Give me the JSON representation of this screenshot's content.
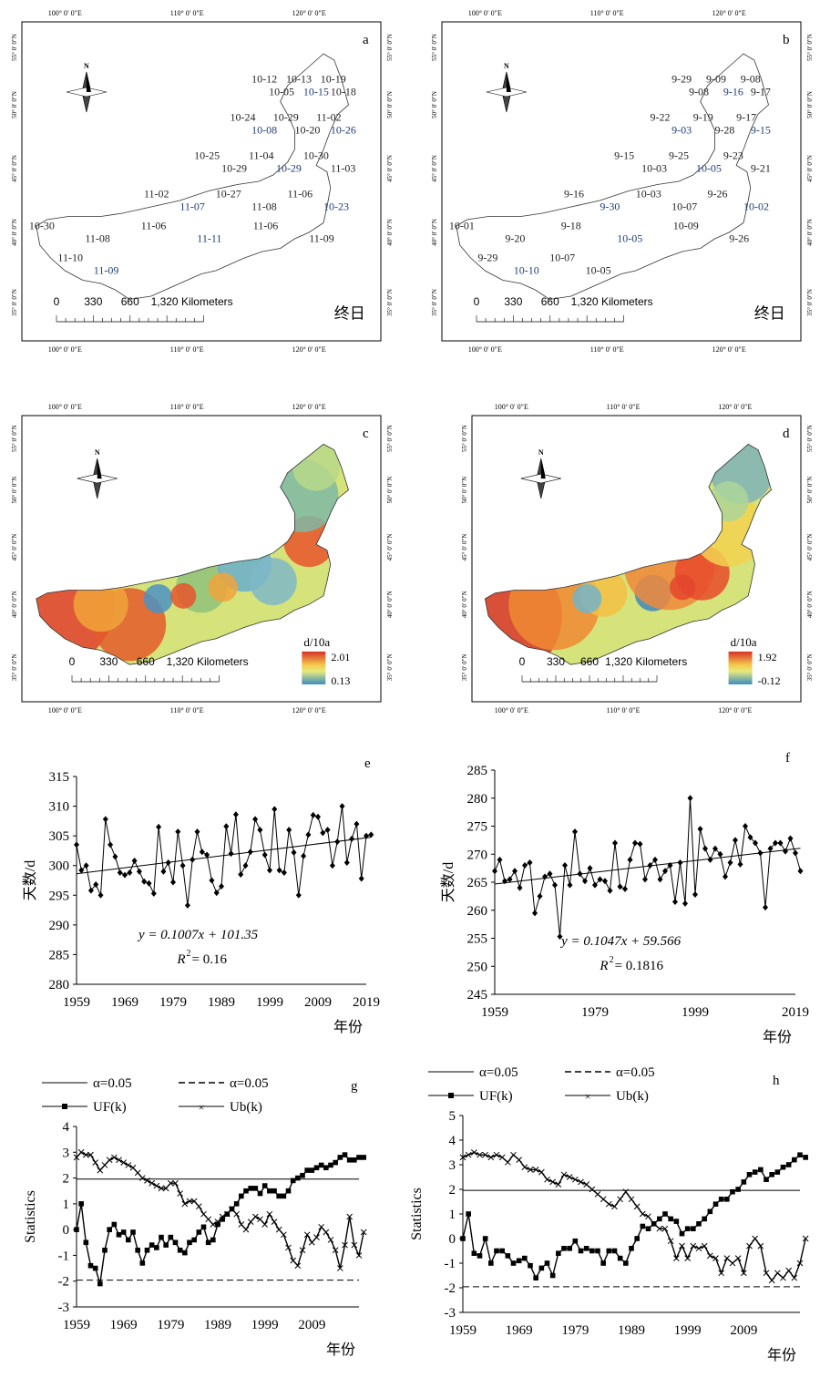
{
  "chart_data": [
    {
      "panel": "a",
      "type": "map",
      "corner_label": "终日",
      "north": "N",
      "scale_labels": [
        "0",
        "330",
        "660",
        "1,320 Kilometers"
      ],
      "lon_labels": [
        "100° 0′ 0″E",
        "110° 0′ 0″E",
        "120° 0′ 0″E"
      ],
      "lat_labels": [
        "55° 0′ 0″N",
        "50° 0′ 0″N",
        "45° 0′ 0″N",
        "40° 0′ 0″N",
        "35° 0′ 0″N"
      ],
      "station_dates": [
        "10-12",
        "10-05",
        "10-13",
        "10-15",
        "10-19",
        "10-18",
        "10-24",
        "10-08",
        "10-29",
        "10-20",
        "11-02",
        "10-26",
        "10-25",
        "10-29",
        "11-04",
        "10-29",
        "10-30",
        "11-03",
        "11-02",
        "11-07",
        "10-27",
        "11-08",
        "11-06",
        "10-23",
        "10-30",
        "11-08",
        "11-06",
        "11-11",
        "11-06",
        "11-09",
        "11-10",
        "11-09"
      ]
    },
    {
      "panel": "b",
      "type": "map",
      "corner_label": "终日",
      "north": "N",
      "scale_labels": [
        "0",
        "330",
        "660",
        "1,320 Kilometers"
      ],
      "lon_labels": [
        "100° 0′ 0″E",
        "110° 0′ 0″E",
        "120° 0′ 0″E"
      ],
      "lat_labels": [
        "55° 0′ 0″N",
        "50° 0′ 0″N",
        "45° 0′ 0″N",
        "40° 0′ 0″N",
        "35° 0′ 0″N"
      ],
      "station_dates": [
        "9-29",
        "9-08",
        "9-09",
        "9-16",
        "9-08",
        "9-17",
        "9-22",
        "9-03",
        "9-19",
        "9-28",
        "9-17",
        "9-15",
        "9-15",
        "10-03",
        "9-25",
        "10-05",
        "9-23",
        "9-21",
        "9-16",
        "9-30",
        "10-03",
        "10-07",
        "9-26",
        "10-02",
        "10-01",
        "9-20",
        "9-18",
        "10-05",
        "10-09",
        "9-26",
        "9-29",
        "10-10",
        "10-07",
        "10-05"
      ]
    },
    {
      "panel": "c",
      "type": "heatmap",
      "legend_title": "d/10a",
      "legend_max": "2.01",
      "legend_min": "0.13",
      "north": "N",
      "scale_labels": [
        "0",
        "330",
        "660",
        "1,320 Kilometers"
      ],
      "lon_labels": [
        "100° 0′ 0″E",
        "110° 0′ 0″E",
        "120° 0′ 0″E"
      ],
      "lat_labels": [
        "55° 0′ 0″N",
        "50° 0′ 0″N",
        "45° 0′ 0″N",
        "40° 0′ 0″N",
        "35° 0′ 0″N"
      ]
    },
    {
      "panel": "d",
      "type": "heatmap",
      "legend_title": "d/10a",
      "legend_max": "1.92",
      "legend_min": "-0.12",
      "north": "N",
      "scale_labels": [
        "0",
        "330",
        "660",
        "1,320 Kilometers"
      ],
      "lon_labels": [
        "100° 0′ 0″E",
        "110° 0′ 0″E",
        "120° 0′ 0″E"
      ],
      "lat_labels": [
        "55° 0′ 0″N",
        "50° 0′ 0″N",
        "45° 0′ 0″N",
        "40° 0′ 0″N",
        "35° 0′ 0″N"
      ]
    },
    {
      "panel": "e",
      "type": "line",
      "xlabel": "年份",
      "ylabel": "天数/d",
      "x_start": 1959,
      "xlim": [
        1959,
        2019
      ],
      "ylim": [
        280,
        315
      ],
      "xticks": [
        1959,
        1969,
        1979,
        1989,
        1999,
        2009,
        2019
      ],
      "yticks": [
        280,
        285,
        290,
        295,
        300,
        305,
        310,
        315
      ],
      "equation": "y = 0.1007x + 101.35",
      "r2_label": "R",
      "r2_value": " = 0.16",
      "trend": {
        "slope": 0.1007,
        "intercept": 101.35
      },
      "values": [
        303.5,
        299.2,
        300.0,
        295.8,
        296.8,
        295.0,
        307.8,
        303.5,
        301.5,
        298.8,
        298.4,
        298.8,
        300.8,
        299.0,
        297.3,
        297.0,
        295.3,
        306.5,
        299.0,
        300.5,
        297.2,
        305.7,
        300.0,
        293.3,
        301.0,
        305.7,
        302.3,
        301.8,
        297.5,
        295.4,
        296.5,
        306.6,
        302.0,
        308.6,
        298.5,
        300.0,
        302.3,
        307.8,
        306.0,
        301.8,
        299.2,
        309.5,
        299.2,
        298.8,
        306.0,
        302.2,
        295.0,
        301.6,
        305.2,
        308.5,
        308.2,
        305.5,
        306.0,
        300.0,
        304.0,
        310.0,
        300.5,
        304.5,
        307.0,
        297.8,
        305.0,
        305.2
      ]
    },
    {
      "panel": "f",
      "type": "line",
      "xlabel": "年份",
      "ylabel": "天数/d",
      "x_start": 1959,
      "xlim": [
        1959,
        2019
      ],
      "ylim": [
        245,
        285
      ],
      "xticks": [
        1959,
        1979,
        1999,
        2019
      ],
      "yticks": [
        245,
        250,
        255,
        260,
        265,
        270,
        275,
        280,
        285
      ],
      "equation": "y = 0.1047x + 59.566",
      "r2_label": "R",
      "r2_value": " = 0.1816",
      "trend": {
        "slope": 0.1047,
        "intercept": 59.566
      },
      "values": [
        267.0,
        269.0,
        265.2,
        265.5,
        267.0,
        264.0,
        268.0,
        268.5,
        259.5,
        262.5,
        266.0,
        266.5,
        264.5,
        255.3,
        268.0,
        264.5,
        274.0,
        266.5,
        265.2,
        267.5,
        264.5,
        265.5,
        265.2,
        263.5,
        272.0,
        264.2,
        263.8,
        269.0,
        272.0,
        271.8,
        265.5,
        268.0,
        269.0,
        265.5,
        267.0,
        268.0,
        261.5,
        268.5,
        261.2,
        280.0,
        262.8,
        274.5,
        271.0,
        269.0,
        271.0,
        270.0,
        266.0,
        268.5,
        272.5,
        268.2,
        275.0,
        273.0,
        272.0,
        270.2,
        260.5,
        271.0,
        272.0,
        272.0,
        270.5,
        272.8,
        270.2,
        267.0
      ]
    },
    {
      "panel": "g",
      "type": "line",
      "xlabel": "年份",
      "ylabel": "Statistics",
      "x_start": 1959,
      "xlim": [
        1959,
        2019
      ],
      "ylim": [
        -3,
        4
      ],
      "xticks": [
        1959,
        1969,
        1979,
        1989,
        1999,
        2009
      ],
      "yticks": [
        -3,
        -2,
        -1,
        0,
        1,
        2,
        3,
        4
      ],
      "legend": [
        "α=0.05",
        "α=0.05",
        "UF(k)",
        "Ub(k)"
      ],
      "thresholds": [
        1.96,
        -1.96
      ],
      "series": [
        {
          "name": "UF(k)",
          "values": [
            0.0,
            1.0,
            -0.5,
            -1.4,
            -1.5,
            -2.1,
            -0.8,
            0.0,
            0.2,
            -0.2,
            -0.1,
            -0.4,
            -0.1,
            -0.8,
            -1.3,
            -0.8,
            -0.6,
            -0.7,
            -0.3,
            -0.6,
            -0.3,
            -0.5,
            -0.8,
            -0.9,
            -0.5,
            -0.4,
            -0.1,
            0.1,
            -0.5,
            -0.4,
            0.2,
            0.4,
            0.6,
            0.8,
            1.0,
            1.3,
            1.5,
            1.6,
            1.6,
            1.4,
            1.7,
            1.5,
            1.5,
            1.3,
            1.3,
            1.5,
            1.9,
            2.0,
            2.1,
            2.3,
            2.3,
            2.4,
            2.5,
            2.4,
            2.5,
            2.6,
            2.8,
            2.9,
            2.7,
            2.7,
            2.8,
            2.8
          ]
        },
        {
          "name": "Ub(k)",
          "values": [
            2.8,
            3.0,
            2.9,
            2.9,
            2.6,
            2.3,
            2.5,
            2.7,
            2.8,
            2.7,
            2.6,
            2.5,
            2.4,
            2.2,
            2.0,
            1.9,
            1.8,
            1.7,
            1.6,
            1.6,
            1.8,
            1.8,
            1.4,
            1.0,
            1.1,
            1.1,
            0.9,
            0.6,
            0.4,
            0.2,
            0.3,
            0.5,
            0.6,
            0.8,
            0.6,
            0.2,
            0.0,
            0.3,
            0.5,
            0.4,
            0.2,
            0.6,
            0.3,
            0.0,
            -0.2,
            -0.7,
            -1.2,
            -1.4,
            -0.8,
            -0.2,
            -0.5,
            -0.3,
            0.1,
            -0.1,
            -0.4,
            -0.8,
            -1.5,
            -0.6,
            0.5,
            -0.6,
            -1.0,
            -0.1
          ]
        }
      ]
    },
    {
      "panel": "h",
      "type": "line",
      "xlabel": "年份",
      "ylabel": "Statistics",
      "x_start": 1959,
      "xlim": [
        1959,
        2019
      ],
      "ylim": [
        -3,
        5
      ],
      "xticks": [
        1959,
        1969,
        1979,
        1989,
        1999,
        2009
      ],
      "yticks": [
        -3,
        -2,
        -1,
        0,
        1,
        2,
        3,
        4,
        5
      ],
      "legend": [
        "α=0.05",
        "α=0.05",
        "UF(k)",
        "Ub(k)"
      ],
      "thresholds": [
        1.96,
        -1.96
      ],
      "series": [
        {
          "name": "UF(k)",
          "values": [
            0.0,
            1.0,
            -0.6,
            -0.7,
            0.0,
            -1.0,
            -0.5,
            -0.5,
            -0.7,
            -1.0,
            -0.9,
            -0.8,
            -1.1,
            -1.6,
            -1.2,
            -1.0,
            -1.5,
            -0.6,
            -0.4,
            -0.4,
            -0.1,
            -0.5,
            -0.4,
            -0.5,
            -0.5,
            -1.0,
            -0.5,
            -0.5,
            -0.8,
            -1.0,
            -0.4,
            0.0,
            0.5,
            0.4,
            0.6,
            0.8,
            1.0,
            0.8,
            0.7,
            0.2,
            0.4,
            0.4,
            0.6,
            0.8,
            1.1,
            1.4,
            1.6,
            1.6,
            1.9,
            2.0,
            2.3,
            2.6,
            2.7,
            2.8,
            2.4,
            2.6,
            2.7,
            2.9,
            3.0,
            3.2,
            3.4,
            3.3
          ]
        },
        {
          "name": "Ub(k)",
          "values": [
            3.3,
            3.4,
            3.5,
            3.4,
            3.4,
            3.3,
            3.4,
            3.3,
            3.1,
            3.4,
            3.2,
            2.9,
            2.8,
            2.8,
            2.7,
            2.4,
            2.3,
            2.2,
            2.6,
            2.5,
            2.4,
            2.3,
            2.2,
            2.0,
            1.8,
            1.6,
            1.4,
            1.3,
            1.6,
            1.9,
            1.6,
            1.3,
            1.0,
            0.9,
            0.6,
            0.4,
            0.4,
            -0.1,
            -0.8,
            -0.3,
            -0.8,
            -0.3,
            -0.4,
            -0.3,
            -0.7,
            -0.8,
            -1.4,
            -0.8,
            -1.0,
            -0.8,
            -1.4,
            -0.3,
            0.0,
            -0.3,
            -1.4,
            -1.7,
            -1.4,
            -1.6,
            -1.3,
            -1.6,
            -1.0,
            0.0
          ]
        }
      ]
    }
  ]
}
